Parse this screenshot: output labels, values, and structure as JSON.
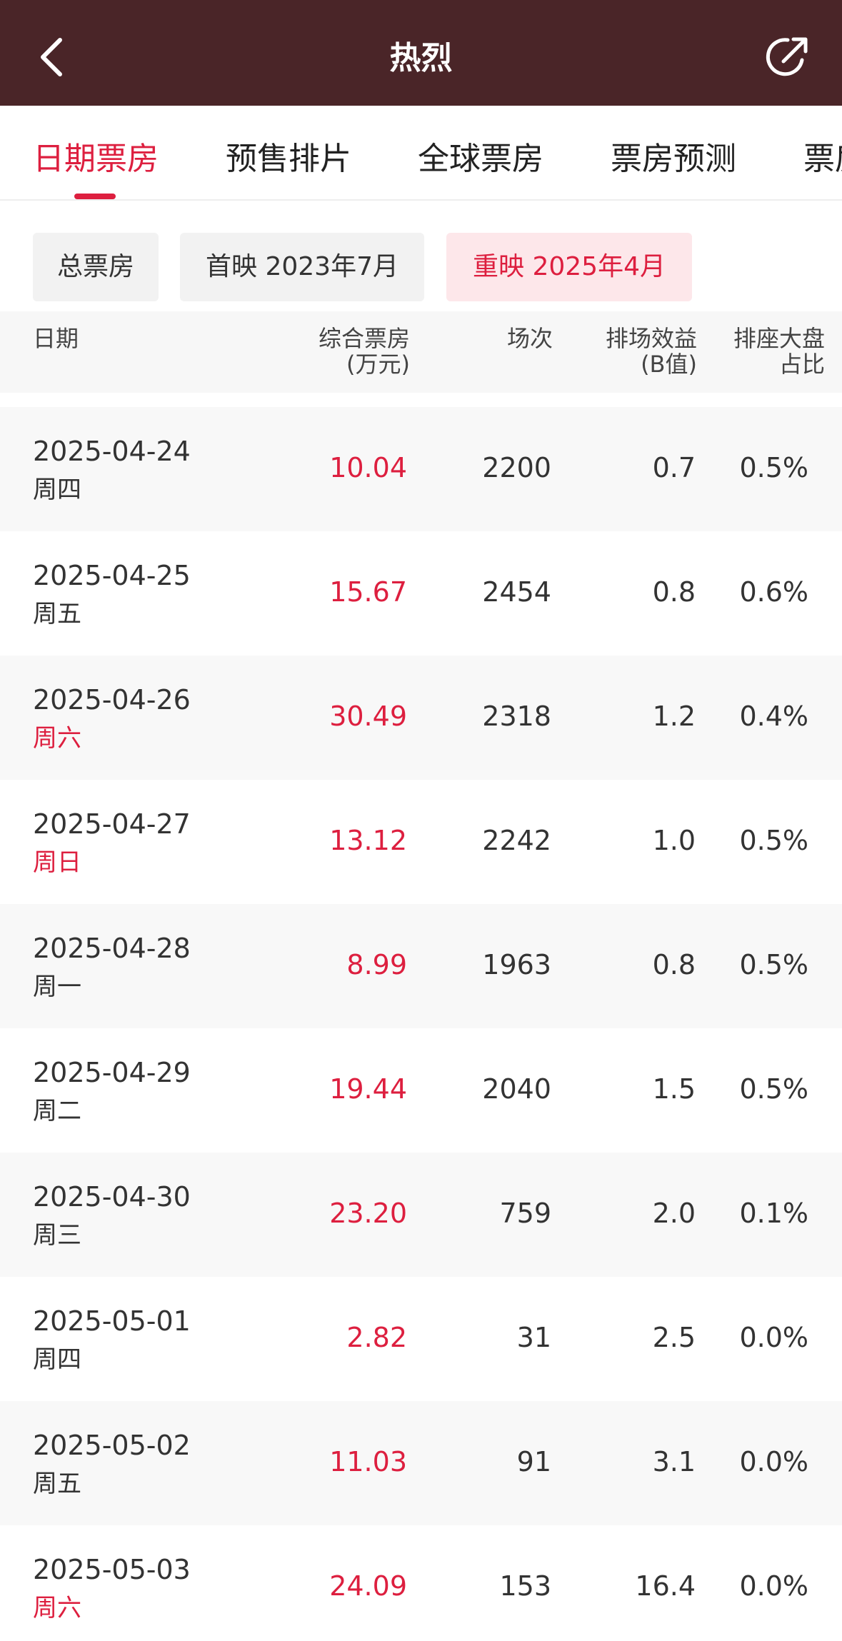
{
  "navbar": {
    "title": "热烈",
    "back_icon": "chevron-left-icon",
    "share_icon": "share-icon",
    "bg_color": "#4a2528"
  },
  "tabs": [
    {
      "label": "日期票房",
      "active": true
    },
    {
      "label": "预售排片",
      "active": false
    },
    {
      "label": "全球票房",
      "active": false
    },
    {
      "label": "票房预测",
      "active": false
    },
    {
      "label": "票房",
      "active": false
    }
  ],
  "accent_color": "#dd1f3f",
  "filters": [
    {
      "label": "总票房",
      "active": false
    },
    {
      "label": "首映 2023年7月",
      "active": false
    },
    {
      "label": "重映 2025年4月",
      "active": true
    }
  ],
  "table": {
    "headers": {
      "date": "日期",
      "box_office_line1": "综合票房",
      "box_office_line2": "(万元)",
      "screenings": "场次",
      "efficiency_line1": "排场效益",
      "efficiency_line2": "(B值)",
      "seat_share_line1": "排座大盘",
      "seat_share_line2": "占比"
    },
    "rows": [
      {
        "date": "2025-04-24",
        "weekday": "周四",
        "weekend": false,
        "box_office": "10.04",
        "screenings": "2200",
        "efficiency": "0.7",
        "seat_share": "0.5%"
      },
      {
        "date": "2025-04-25",
        "weekday": "周五",
        "weekend": false,
        "box_office": "15.67",
        "screenings": "2454",
        "efficiency": "0.8",
        "seat_share": "0.6%"
      },
      {
        "date": "2025-04-26",
        "weekday": "周六",
        "weekend": true,
        "box_office": "30.49",
        "screenings": "2318",
        "efficiency": "1.2",
        "seat_share": "0.4%"
      },
      {
        "date": "2025-04-27",
        "weekday": "周日",
        "weekend": true,
        "box_office": "13.12",
        "screenings": "2242",
        "efficiency": "1.0",
        "seat_share": "0.5%"
      },
      {
        "date": "2025-04-28",
        "weekday": "周一",
        "weekend": false,
        "box_office": "8.99",
        "screenings": "1963",
        "efficiency": "0.8",
        "seat_share": "0.5%"
      },
      {
        "date": "2025-04-29",
        "weekday": "周二",
        "weekend": false,
        "box_office": "19.44",
        "screenings": "2040",
        "efficiency": "1.5",
        "seat_share": "0.5%"
      },
      {
        "date": "2025-04-30",
        "weekday": "周三",
        "weekend": false,
        "box_office": "23.20",
        "screenings": "759",
        "efficiency": "2.0",
        "seat_share": "0.1%"
      },
      {
        "date": "2025-05-01",
        "weekday": "周四",
        "weekend": false,
        "box_office": "2.82",
        "screenings": "31",
        "efficiency": "2.5",
        "seat_share": "0.0%"
      },
      {
        "date": "2025-05-02",
        "weekday": "周五",
        "weekend": false,
        "box_office": "11.03",
        "screenings": "91",
        "efficiency": "3.1",
        "seat_share": "0.0%"
      },
      {
        "date": "2025-05-03",
        "weekday": "周六",
        "weekend": true,
        "box_office": "24.09",
        "screenings": "153",
        "efficiency": "16.4",
        "seat_share": "0.0%"
      }
    ]
  }
}
